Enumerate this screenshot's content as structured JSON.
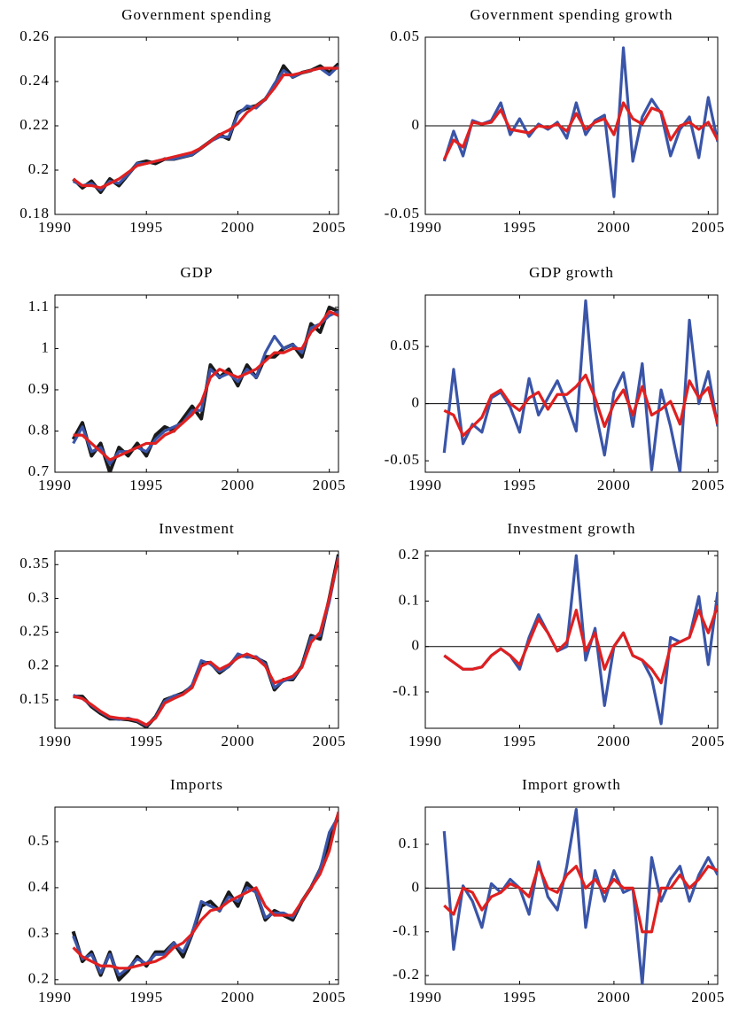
{
  "chart_data": [
    {
      "type": "line",
      "title": "Government spending",
      "x": [
        1991,
        1991.5,
        1992,
        1992.5,
        1993,
        1993.5,
        1994,
        1994.5,
        1995,
        1995.5,
        1996,
        1996.5,
        1997,
        1997.5,
        1998,
        1998.5,
        1999,
        1999.5,
        2000,
        2000.5,
        2001,
        2001.5,
        2002,
        2002.5,
        2003,
        2003.5,
        2004,
        2004.5,
        2005,
        2005.5
      ],
      "series": [
        {
          "color": "#1a1a1a",
          "values": [
            0.196,
            0.192,
            0.195,
            0.19,
            0.196,
            0.193,
            0.198,
            0.203,
            0.204,
            0.203,
            0.205,
            0.205,
            0.206,
            0.207,
            0.21,
            0.213,
            0.216,
            0.214,
            0.226,
            0.228,
            0.229,
            0.232,
            0.238,
            0.247,
            0.242,
            0.244,
            0.245,
            0.247,
            0.244,
            0.248
          ]
        },
        {
          "color": "#3a55a8",
          "values": [
            0.195,
            0.193,
            0.194,
            0.191,
            0.195,
            0.194,
            0.198,
            0.203,
            0.203,
            0.204,
            0.205,
            0.205,
            0.206,
            0.207,
            0.21,
            0.213,
            0.215,
            0.215,
            0.225,
            0.229,
            0.228,
            0.232,
            0.239,
            0.245,
            0.242,
            0.244,
            0.245,
            0.246,
            0.243,
            0.247
          ]
        },
        {
          "color": "#e02020",
          "values": [
            0.196,
            0.193,
            0.193,
            0.192,
            0.194,
            0.196,
            0.199,
            0.202,
            0.203,
            0.204,
            0.205,
            0.206,
            0.207,
            0.208,
            0.21,
            0.213,
            0.216,
            0.218,
            0.221,
            0.226,
            0.229,
            0.232,
            0.237,
            0.243,
            0.243,
            0.244,
            0.245,
            0.246,
            0.246,
            0.246
          ]
        }
      ],
      "xlim": [
        1990,
        2005.5
      ],
      "ylim": [
        0.18,
        0.26
      ],
      "xticks": [
        1990,
        1995,
        2000,
        2005
      ],
      "yticks": [
        0.18,
        0.2,
        0.22,
        0.24,
        0.26
      ]
    },
    {
      "type": "line",
      "title": "Government spending growth",
      "x": [
        1991,
        1991.5,
        1992,
        1992.5,
        1993,
        1993.5,
        1994,
        1994.5,
        1995,
        1995.5,
        1996,
        1996.5,
        1997,
        1997.5,
        1998,
        1998.5,
        1999,
        1999.5,
        2000,
        2000.5,
        2001,
        2001.5,
        2002,
        2002.5,
        2003,
        2003.5,
        2004,
        2004.5,
        2005,
        2005.5
      ],
      "series": [
        {
          "color": "#3a55a8",
          "values": [
            -0.02,
            -0.003,
            -0.017,
            0.003,
            0.001,
            0.003,
            0.013,
            -0.005,
            0.004,
            -0.006,
            0.001,
            -0.002,
            0.002,
            -0.007,
            0.013,
            -0.005,
            0.003,
            0.006,
            -0.04,
            0.044,
            -0.02,
            0.005,
            0.015,
            0.007,
            -0.017,
            -0.002,
            0.005,
            -0.018,
            0.016,
            -0.009
          ]
        },
        {
          "color": "#e02020",
          "values": [
            -0.019,
            -0.008,
            -0.012,
            0.002,
            0.001,
            0.002,
            0.009,
            -0.002,
            -0.003,
            -0.004,
            0.0,
            -0.001,
            0.001,
            -0.003,
            0.007,
            -0.002,
            0.002,
            0.004,
            -0.005,
            0.013,
            0.004,
            0.001,
            0.01,
            0.008,
            -0.008,
            0.0,
            0.002,
            -0.002,
            0.002,
            -0.008
          ]
        }
      ],
      "xlim": [
        1990,
        2005.5
      ],
      "ylim": [
        -0.05,
        0.05
      ],
      "xticks": [
        1990,
        1995,
        2000,
        2005
      ],
      "yticks": [
        -0.05,
        0,
        0.05
      ],
      "zero_line": true
    },
    {
      "type": "line",
      "title": "GDP",
      "x": [
        1991,
        1991.5,
        1992,
        1992.5,
        1993,
        1993.5,
        1994,
        1994.5,
        1995,
        1995.5,
        1996,
        1996.5,
        1997,
        1997.5,
        1998,
        1998.5,
        1999,
        1999.5,
        2000,
        2000.5,
        2001,
        2001.5,
        2002,
        2002.5,
        2003,
        2003.5,
        2004,
        2004.5,
        2005,
        2005.5
      ],
      "series": [
        {
          "color": "#1a1a1a",
          "values": [
            0.78,
            0.82,
            0.74,
            0.77,
            0.7,
            0.76,
            0.74,
            0.77,
            0.74,
            0.79,
            0.81,
            0.8,
            0.83,
            0.86,
            0.83,
            0.96,
            0.93,
            0.95,
            0.91,
            0.96,
            0.93,
            0.98,
            0.98,
            1.0,
            1.01,
            0.98,
            1.06,
            1.04,
            1.1,
            1.09
          ]
        },
        {
          "color": "#3a55a8",
          "values": [
            0.77,
            0.81,
            0.75,
            0.76,
            0.72,
            0.75,
            0.75,
            0.76,
            0.75,
            0.78,
            0.8,
            0.81,
            0.82,
            0.85,
            0.85,
            0.95,
            0.93,
            0.94,
            0.92,
            0.95,
            0.93,
            0.99,
            1.03,
            1.0,
            1.01,
            0.99,
            1.05,
            1.06,
            1.08,
            1.09
          ]
        },
        {
          "color": "#e02020",
          "values": [
            0.79,
            0.79,
            0.77,
            0.75,
            0.73,
            0.74,
            0.75,
            0.76,
            0.77,
            0.77,
            0.79,
            0.8,
            0.82,
            0.84,
            0.87,
            0.93,
            0.95,
            0.94,
            0.93,
            0.94,
            0.95,
            0.97,
            0.99,
            0.99,
            1.0,
            1.0,
            1.04,
            1.06,
            1.09,
            1.08
          ]
        }
      ],
      "xlim": [
        1990,
        2005.5
      ],
      "ylim": [
        0.7,
        1.13
      ],
      "xticks": [
        1990,
        1995,
        2000,
        2005
      ],
      "yticks": [
        0.7,
        0.8,
        0.9,
        1,
        1.1
      ]
    },
    {
      "type": "line",
      "title": "GDP growth",
      "x": [
        1991,
        1991.5,
        1992,
        1992.5,
        1993,
        1993.5,
        1994,
        1994.5,
        1995,
        1995.5,
        1996,
        1996.5,
        1997,
        1997.5,
        1998,
        1998.5,
        1999,
        1999.5,
        2000,
        2000.5,
        2001,
        2001.5,
        2002,
        2002.5,
        2003,
        2003.5,
        2004,
        2004.5,
        2005,
        2005.5
      ],
      "series": [
        {
          "color": "#3a55a8",
          "values": [
            -0.043,
            0.03,
            -0.035,
            -0.018,
            -0.025,
            0.005,
            0.01,
            -0.003,
            -0.025,
            0.022,
            -0.01,
            0.005,
            0.02,
            0.0,
            -0.024,
            0.09,
            -0.005,
            -0.045,
            0.01,
            0.027,
            -0.02,
            0.035,
            -0.058,
            0.012,
            -0.02,
            -0.06,
            0.073,
            0.0,
            0.028,
            -0.02
          ]
        },
        {
          "color": "#e02020",
          "values": [
            -0.006,
            -0.01,
            -0.028,
            -0.02,
            -0.012,
            0.007,
            0.012,
            0.0,
            -0.006,
            0.005,
            0.01,
            -0.005,
            0.008,
            0.008,
            0.015,
            0.025,
            0.005,
            -0.02,
            0.0,
            0.012,
            -0.01,
            0.015,
            -0.01,
            -0.005,
            0.002,
            -0.018,
            0.02,
            0.005,
            0.014,
            -0.018
          ]
        }
      ],
      "xlim": [
        1990,
        2005.5
      ],
      "ylim": [
        -0.06,
        0.095
      ],
      "xticks": [
        1990,
        1995,
        2000,
        2005
      ],
      "yticks": [
        -0.05,
        0,
        0.05
      ],
      "zero_line": true
    },
    {
      "type": "line",
      "title": "Investment",
      "x": [
        1991,
        1991.5,
        1992,
        1992.5,
        1993,
        1993.5,
        1994,
        1994.5,
        1995,
        1995.5,
        1996,
        1996.5,
        1997,
        1997.5,
        1998,
        1998.5,
        1999,
        1999.5,
        2000,
        2000.5,
        2001,
        2001.5,
        2002,
        2002.5,
        2003,
        2003.5,
        2004,
        2004.5,
        2005,
        2005.5
      ],
      "series": [
        {
          "color": "#1a1a1a",
          "values": [
            0.155,
            0.155,
            0.14,
            0.13,
            0.122,
            0.122,
            0.121,
            0.118,
            0.11,
            0.125,
            0.15,
            0.155,
            0.16,
            0.17,
            0.205,
            0.205,
            0.19,
            0.2,
            0.215,
            0.215,
            0.212,
            0.205,
            0.165,
            0.18,
            0.18,
            0.2,
            0.245,
            0.24,
            0.3,
            0.365
          ]
        },
        {
          "color": "#3a55a8",
          "values": [
            0.157,
            0.152,
            0.142,
            0.132,
            0.124,
            0.121,
            0.123,
            0.119,
            0.112,
            0.124,
            0.148,
            0.156,
            0.158,
            0.172,
            0.208,
            0.203,
            0.192,
            0.199,
            0.218,
            0.213,
            0.214,
            0.203,
            0.168,
            0.178,
            0.182,
            0.199,
            0.242,
            0.245,
            0.295,
            0.362
          ]
        },
        {
          "color": "#e02020",
          "values": [
            0.155,
            0.152,
            0.143,
            0.133,
            0.125,
            0.123,
            0.122,
            0.12,
            0.113,
            0.123,
            0.145,
            0.152,
            0.158,
            0.168,
            0.2,
            0.206,
            0.195,
            0.202,
            0.212,
            0.218,
            0.212,
            0.2,
            0.175,
            0.18,
            0.185,
            0.198,
            0.235,
            0.25,
            0.3,
            0.36
          ]
        }
      ],
      "xlim": [
        1990,
        2005.5
      ],
      "ylim": [
        0.108,
        0.37
      ],
      "xticks": [
        1990,
        1995,
        2000,
        2005
      ],
      "yticks": [
        0.15,
        0.2,
        0.25,
        0.3,
        0.35
      ]
    },
    {
      "type": "line",
      "title": "Investment growth",
      "x": [
        1991,
        1991.5,
        1992,
        1992.5,
        1993,
        1993.5,
        1994,
        1994.5,
        1995,
        1995.5,
        1996,
        1996.5,
        1997,
        1997.5,
        1998,
        1998.5,
        1999,
        1999.5,
        2000,
        2000.5,
        2001,
        2001.5,
        2002,
        2002.5,
        2003,
        2003.5,
        2004,
        2004.5,
        2005,
        2005.5
      ],
      "series": [
        {
          "color": "#3a55a8",
          "values": [
            -0.02,
            -0.035,
            -0.05,
            -0.05,
            -0.045,
            -0.02,
            -0.005,
            -0.02,
            -0.05,
            0.02,
            0.07,
            0.03,
            -0.01,
            0.0,
            0.2,
            -0.03,
            0.04,
            -0.13,
            0.0,
            0.03,
            -0.02,
            -0.03,
            -0.07,
            -0.17,
            0.02,
            0.01,
            0.02,
            0.11,
            -0.04,
            0.12
          ]
        },
        {
          "color": "#e02020",
          "values": [
            -0.02,
            -0.035,
            -0.05,
            -0.05,
            -0.045,
            -0.02,
            -0.005,
            -0.02,
            -0.04,
            0.01,
            0.06,
            0.03,
            -0.01,
            0.01,
            0.08,
            -0.01,
            0.03,
            -0.05,
            0.0,
            0.03,
            -0.02,
            -0.03,
            -0.05,
            -0.08,
            0.0,
            0.01,
            0.02,
            0.08,
            0.03,
            0.09
          ]
        }
      ],
      "xlim": [
        1990,
        2005.5
      ],
      "ylim": [
        -0.18,
        0.21
      ],
      "xticks": [
        1990,
        1995,
        2000,
        2005
      ],
      "yticks": [
        -0.1,
        0,
        0.1,
        0.2
      ],
      "zero_line": true
    },
    {
      "type": "line",
      "title": "Imports",
      "x": [
        1991,
        1991.5,
        1992,
        1992.5,
        1993,
        1993.5,
        1994,
        1994.5,
        1995,
        1995.5,
        1996,
        1996.5,
        1997,
        1997.5,
        1998,
        1998.5,
        1999,
        1999.5,
        2000,
        2000.5,
        2001,
        2001.5,
        2002,
        2002.5,
        2003,
        2003.5,
        2004,
        2004.5,
        2005,
        2005.5
      ],
      "series": [
        {
          "color": "#1a1a1a",
          "values": [
            0.305,
            0.24,
            0.26,
            0.21,
            0.26,
            0.2,
            0.22,
            0.25,
            0.23,
            0.26,
            0.26,
            0.28,
            0.25,
            0.3,
            0.36,
            0.37,
            0.35,
            0.39,
            0.36,
            0.41,
            0.39,
            0.33,
            0.35,
            0.34,
            0.33,
            0.37,
            0.4,
            0.44,
            0.5,
            0.56
          ]
        },
        {
          "color": "#3a55a8",
          "values": [
            0.295,
            0.245,
            0.255,
            0.215,
            0.255,
            0.21,
            0.225,
            0.245,
            0.235,
            0.255,
            0.255,
            0.28,
            0.26,
            0.3,
            0.37,
            0.36,
            0.35,
            0.38,
            0.37,
            0.4,
            0.39,
            0.335,
            0.345,
            0.345,
            0.335,
            0.37,
            0.4,
            0.44,
            0.52,
            0.555
          ]
        },
        {
          "color": "#e02020",
          "values": [
            0.27,
            0.25,
            0.24,
            0.23,
            0.23,
            0.225,
            0.225,
            0.23,
            0.235,
            0.24,
            0.25,
            0.27,
            0.28,
            0.3,
            0.33,
            0.35,
            0.355,
            0.37,
            0.38,
            0.39,
            0.4,
            0.36,
            0.34,
            0.34,
            0.34,
            0.37,
            0.4,
            0.43,
            0.48,
            0.565
          ]
        }
      ],
      "xlim": [
        1990,
        2005.5
      ],
      "ylim": [
        0.19,
        0.575
      ],
      "xticks": [
        1990,
        1995,
        2000,
        2005
      ],
      "yticks": [
        0.2,
        0.3,
        0.4,
        0.5
      ]
    },
    {
      "type": "line",
      "title": "Import growth",
      "x": [
        1991,
        1991.5,
        1992,
        1992.5,
        1993,
        1993.5,
        1994,
        1994.5,
        1995,
        1995.5,
        1996,
        1996.5,
        1997,
        1997.5,
        1998,
        1998.5,
        1999,
        1999.5,
        2000,
        2000.5,
        2001,
        2001.5,
        2002,
        2002.5,
        2003,
        2003.5,
        2004,
        2004.5,
        2005,
        2005.5
      ],
      "series": [
        {
          "color": "#3a55a8",
          "values": [
            0.13,
            -0.14,
            0.005,
            -0.03,
            -0.09,
            0.01,
            -0.01,
            0.02,
            0.0,
            -0.06,
            0.06,
            -0.02,
            -0.05,
            0.05,
            0.18,
            -0.09,
            0.04,
            -0.03,
            0.04,
            -0.01,
            0.0,
            -0.22,
            0.07,
            -0.03,
            0.02,
            0.05,
            -0.03,
            0.03,
            0.07,
            0.03
          ]
        },
        {
          "color": "#e02020",
          "values": [
            -0.04,
            -0.06,
            0.0,
            -0.01,
            -0.05,
            -0.02,
            -0.01,
            0.01,
            0.0,
            -0.02,
            0.05,
            0.0,
            -0.01,
            0.03,
            0.05,
            0.0,
            0.02,
            -0.01,
            0.02,
            0.0,
            0.0,
            -0.1,
            -0.1,
            0.0,
            0.0,
            0.03,
            0.0,
            0.02,
            0.05,
            0.04
          ]
        }
      ],
      "xlim": [
        1990,
        2005.5
      ],
      "ylim": [
        -0.22,
        0.185
      ],
      "xticks": [
        1990,
        1995,
        2000,
        2005
      ],
      "yticks": [
        -0.2,
        -0.1,
        0,
        0.1
      ],
      "zero_line": true
    }
  ]
}
